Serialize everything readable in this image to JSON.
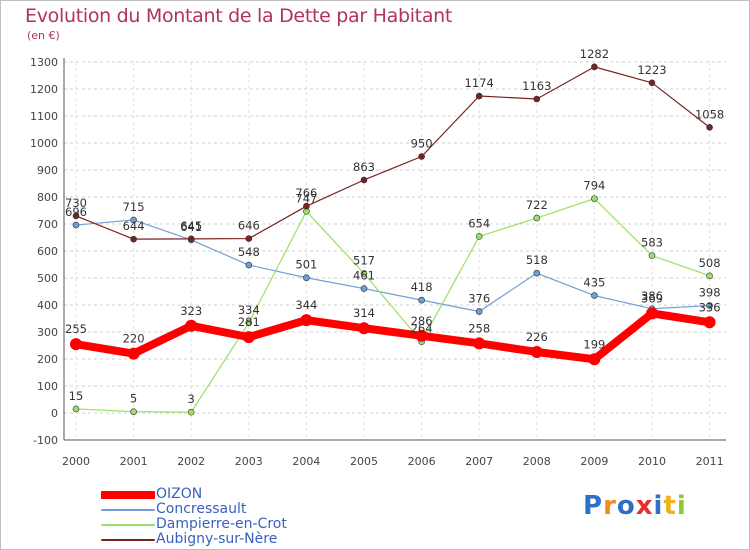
{
  "header": {
    "title": "Evolution du Montant de la Dette par Habitant",
    "unit": "(en €)"
  },
  "chart_data": {
    "type": "line",
    "title": "Evolution du Montant de la Dette par Habitant",
    "subtitle": "(en €)",
    "xlabel": "",
    "ylabel": "",
    "x": [
      "2000",
      "2001",
      "2002",
      "2003",
      "2004",
      "2005",
      "2006",
      "2007",
      "2008",
      "2009",
      "2010",
      "2011"
    ],
    "ylim": [
      -100,
      1300
    ],
    "yticks": [
      "-100",
      "0",
      "100",
      "200",
      "300",
      "400",
      "500",
      "600",
      "700",
      "800",
      "900",
      "1000",
      "1100",
      "1200",
      "1300"
    ],
    "grid": "horizontal dashed",
    "legend": "bottom-left",
    "series": [
      {
        "name": "OIZON",
        "color": "#ff0000",
        "values": [
          255,
          220,
          323,
          281,
          344,
          314,
          286,
          258,
          226,
          199,
          369,
          336
        ]
      },
      {
        "name": "Concressault",
        "color": "#6f9fd8",
        "values": [
          696,
          715,
          641,
          548,
          501,
          461,
          418,
          376,
          518,
          435,
          386,
          398
        ]
      },
      {
        "name": "Dampierre-en-Crot",
        "color": "#99e065",
        "values": [
          15,
          5,
          3,
          334,
          747,
          517,
          264,
          654,
          722,
          794,
          583,
          508
        ]
      },
      {
        "name": "Aubigny-sur-Nère",
        "color": "#7a2222",
        "values": [
          730,
          644,
          645,
          646,
          766,
          863,
          950,
          1174,
          1163,
          1282,
          1223,
          1058
        ]
      }
    ]
  },
  "logo": {
    "letters": [
      "P",
      "r",
      "o",
      "x",
      "i",
      "t",
      "i"
    ],
    "colors": [
      "#2f6fc6",
      "#f08c1a",
      "#2f6fc6",
      "#e8302a",
      "#2f6fc6",
      "#f2b01a",
      "#8cc63f"
    ]
  }
}
